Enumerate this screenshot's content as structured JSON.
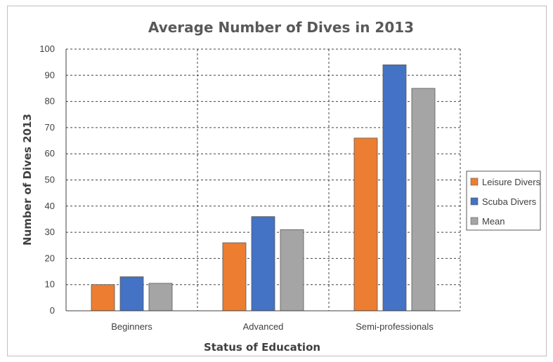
{
  "chart_data": {
    "type": "bar",
    "title": "Average Number of Dives in 2013",
    "xlabel": "Status of Education",
    "ylabel": "Number of Dives 2013",
    "categories": [
      "Beginners",
      "Advanced",
      "Semi-professionals"
    ],
    "series": [
      {
        "name": "Leisure Divers",
        "color": "#ed7d31",
        "values": [
          10,
          26,
          66
        ]
      },
      {
        "name": "Scuba Divers",
        "color": "#4472c4",
        "values": [
          13,
          36,
          94
        ]
      },
      {
        "name": "Mean",
        "color": "#a5a5a5",
        "values": [
          10.5,
          31,
          85
        ]
      }
    ],
    "ylim": [
      0,
      100
    ],
    "yticks": [
      "0",
      "10",
      "20",
      "30",
      "40",
      "50",
      "60",
      "70",
      "80",
      "90",
      "100"
    ],
    "grid": true,
    "legend_position": "right"
  }
}
